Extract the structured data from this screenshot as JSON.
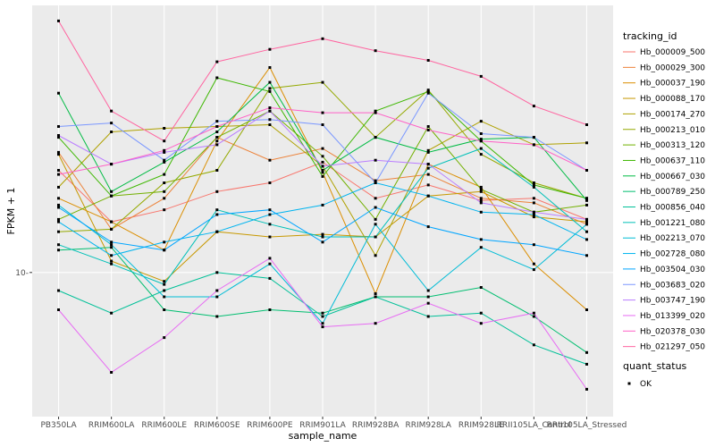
{
  "chart_data": {
    "type": "line",
    "xlabel": "sample_name",
    "ylabel": "FPKM + 1",
    "y_scale": "log",
    "ylim": [
      6.1,
      25.0
    ],
    "y_ticks": [
      {
        "value": 10,
        "label": "10-"
      }
    ],
    "grid": true,
    "legend_position": "right",
    "categories": [
      "PB350LA",
      "RRIM600LA",
      "RRIM600LE",
      "RRIM600SE",
      "RRIM600PE",
      "RRIM901LA",
      "RRIM928BA",
      "RRIM928LA",
      "RRIM928LE",
      "RRII105LA_Control",
      "RRII105LA_Stressed"
    ],
    "legend": {
      "title": "tracking_id",
      "shape_title": "quant_status",
      "shape_entries": [
        {
          "label": "OK"
        }
      ]
    },
    "series": [
      {
        "name": "Hb_000009_500",
        "color": "#F8766D",
        "values": [
          14.2,
          11.9,
          12.4,
          13.2,
          13.6,
          14.6,
          12.9,
          13.5,
          12.8,
          12.9,
          12.0
        ]
      },
      {
        "name": "Hb_000029_300",
        "color": "#EC8239",
        "values": [
          15.1,
          11.6,
          12.9,
          15.9,
          14.7,
          15.3,
          13.7,
          14.0,
          12.9,
          12.7,
          11.8
        ]
      },
      {
        "name": "Hb_000037_190",
        "color": "#DB8E00",
        "values": [
          12.9,
          11.9,
          10.8,
          15.7,
          20.2,
          14.1,
          9.3,
          14.5,
          13.4,
          10.3,
          8.8
        ]
      },
      {
        "name": "Hb_000088_170",
        "color": "#C79800",
        "values": [
          15.0,
          10.4,
          9.7,
          11.5,
          11.3,
          11.4,
          11.3,
          13.0,
          13.2,
          12.1,
          11.9
        ]
      },
      {
        "name": "Hb_000174_270",
        "color": "#AFA100",
        "values": [
          13.4,
          16.2,
          16.4,
          16.5,
          16.6,
          14.4,
          10.6,
          15.2,
          16.8,
          15.5,
          15.6
        ]
      },
      {
        "name": "Hb_000213_010",
        "color": "#94A900",
        "values": [
          11.5,
          11.6,
          13.6,
          14.2,
          18.8,
          19.2,
          15.9,
          18.7,
          15.0,
          13.6,
          12.9
        ]
      },
      {
        "name": "Hb_000313_120",
        "color": "#72B000",
        "values": [
          12.0,
          13.0,
          13.2,
          15.9,
          17.4,
          14.9,
          12.0,
          16.5,
          13.3,
          12.3,
          12.6
        ]
      },
      {
        "name": "Hb_000637_110",
        "color": "#3DB700",
        "values": [
          15.9,
          13.0,
          14.0,
          19.5,
          18.6,
          13.9,
          17.4,
          18.6,
          15.7,
          13.5,
          12.9
        ]
      },
      {
        "name": "Hb_000667_030",
        "color": "#00BB44",
        "values": [
          18.5,
          13.2,
          14.6,
          16.2,
          19.2,
          14.2,
          15.9,
          15.1,
          15.8,
          15.9,
          12.8
        ]
      },
      {
        "name": "Hb_000789_250",
        "color": "#00BE70",
        "values": [
          10.8,
          10.9,
          8.8,
          8.6,
          8.8,
          8.7,
          9.2,
          9.2,
          9.5,
          8.6,
          7.6
        ]
      },
      {
        "name": "Hb_000856_040",
        "color": "#00C098",
        "values": [
          9.4,
          8.7,
          9.4,
          10.0,
          9.8,
          8.6,
          9.2,
          8.6,
          8.7,
          7.8,
          7.3
        ]
      },
      {
        "name": "Hb_001221_080",
        "color": "#00C0B8",
        "values": [
          11.0,
          10.3,
          9.6,
          12.4,
          11.8,
          11.3,
          11.3,
          14.3,
          15.3,
          13.4,
          11.5
        ]
      },
      {
        "name": "Hb_002213_070",
        "color": "#00BCD6",
        "values": [
          12.6,
          11.0,
          9.2,
          9.2,
          10.3,
          8.4,
          11.8,
          9.4,
          10.9,
          10.1,
          11.8
        ]
      },
      {
        "name": "Hb_002728_080",
        "color": "#00B4EF",
        "values": [
          11.9,
          10.6,
          11.1,
          11.5,
          12.2,
          12.6,
          13.6,
          13.0,
          12.3,
          12.2,
          11.2
        ]
      },
      {
        "name": "Hb_003504_030",
        "color": "#00A5FF",
        "values": [
          12.5,
          11.1,
          10.8,
          12.2,
          12.4,
          11.1,
          12.5,
          11.7,
          11.2,
          11.0,
          10.6
        ]
      },
      {
        "name": "Hb_003683_020",
        "color": "#7A97FF",
        "values": [
          16.5,
          16.7,
          14.7,
          16.8,
          16.9,
          16.6,
          13.6,
          18.5,
          16.1,
          15.9,
          14.2
        ]
      },
      {
        "name": "Hb_003747_190",
        "color": "#BA7DFF",
        "values": [
          16.0,
          14.5,
          15.1,
          15.5,
          17.4,
          14.4,
          14.7,
          14.5,
          12.7,
          12.3,
          12.0
        ]
      },
      {
        "name": "Hb_013399_020",
        "color": "#E76BF3",
        "values": [
          8.8,
          7.1,
          8.0,
          9.4,
          10.5,
          8.3,
          8.4,
          9.0,
          8.4,
          8.7,
          6.7
        ]
      },
      {
        "name": "Hb_020378_030",
        "color": "#FF61C7",
        "values": [
          14.0,
          14.5,
          15.2,
          16.5,
          17.6,
          17.3,
          17.3,
          16.3,
          15.7,
          15.5,
          14.2
        ]
      },
      {
        "name": "Hb_021297_050",
        "color": "#FF64A0",
        "values": [
          23.7,
          17.4,
          15.7,
          20.6,
          21.5,
          22.3,
          21.4,
          20.7,
          19.6,
          17.7,
          16.6
        ]
      }
    ]
  }
}
